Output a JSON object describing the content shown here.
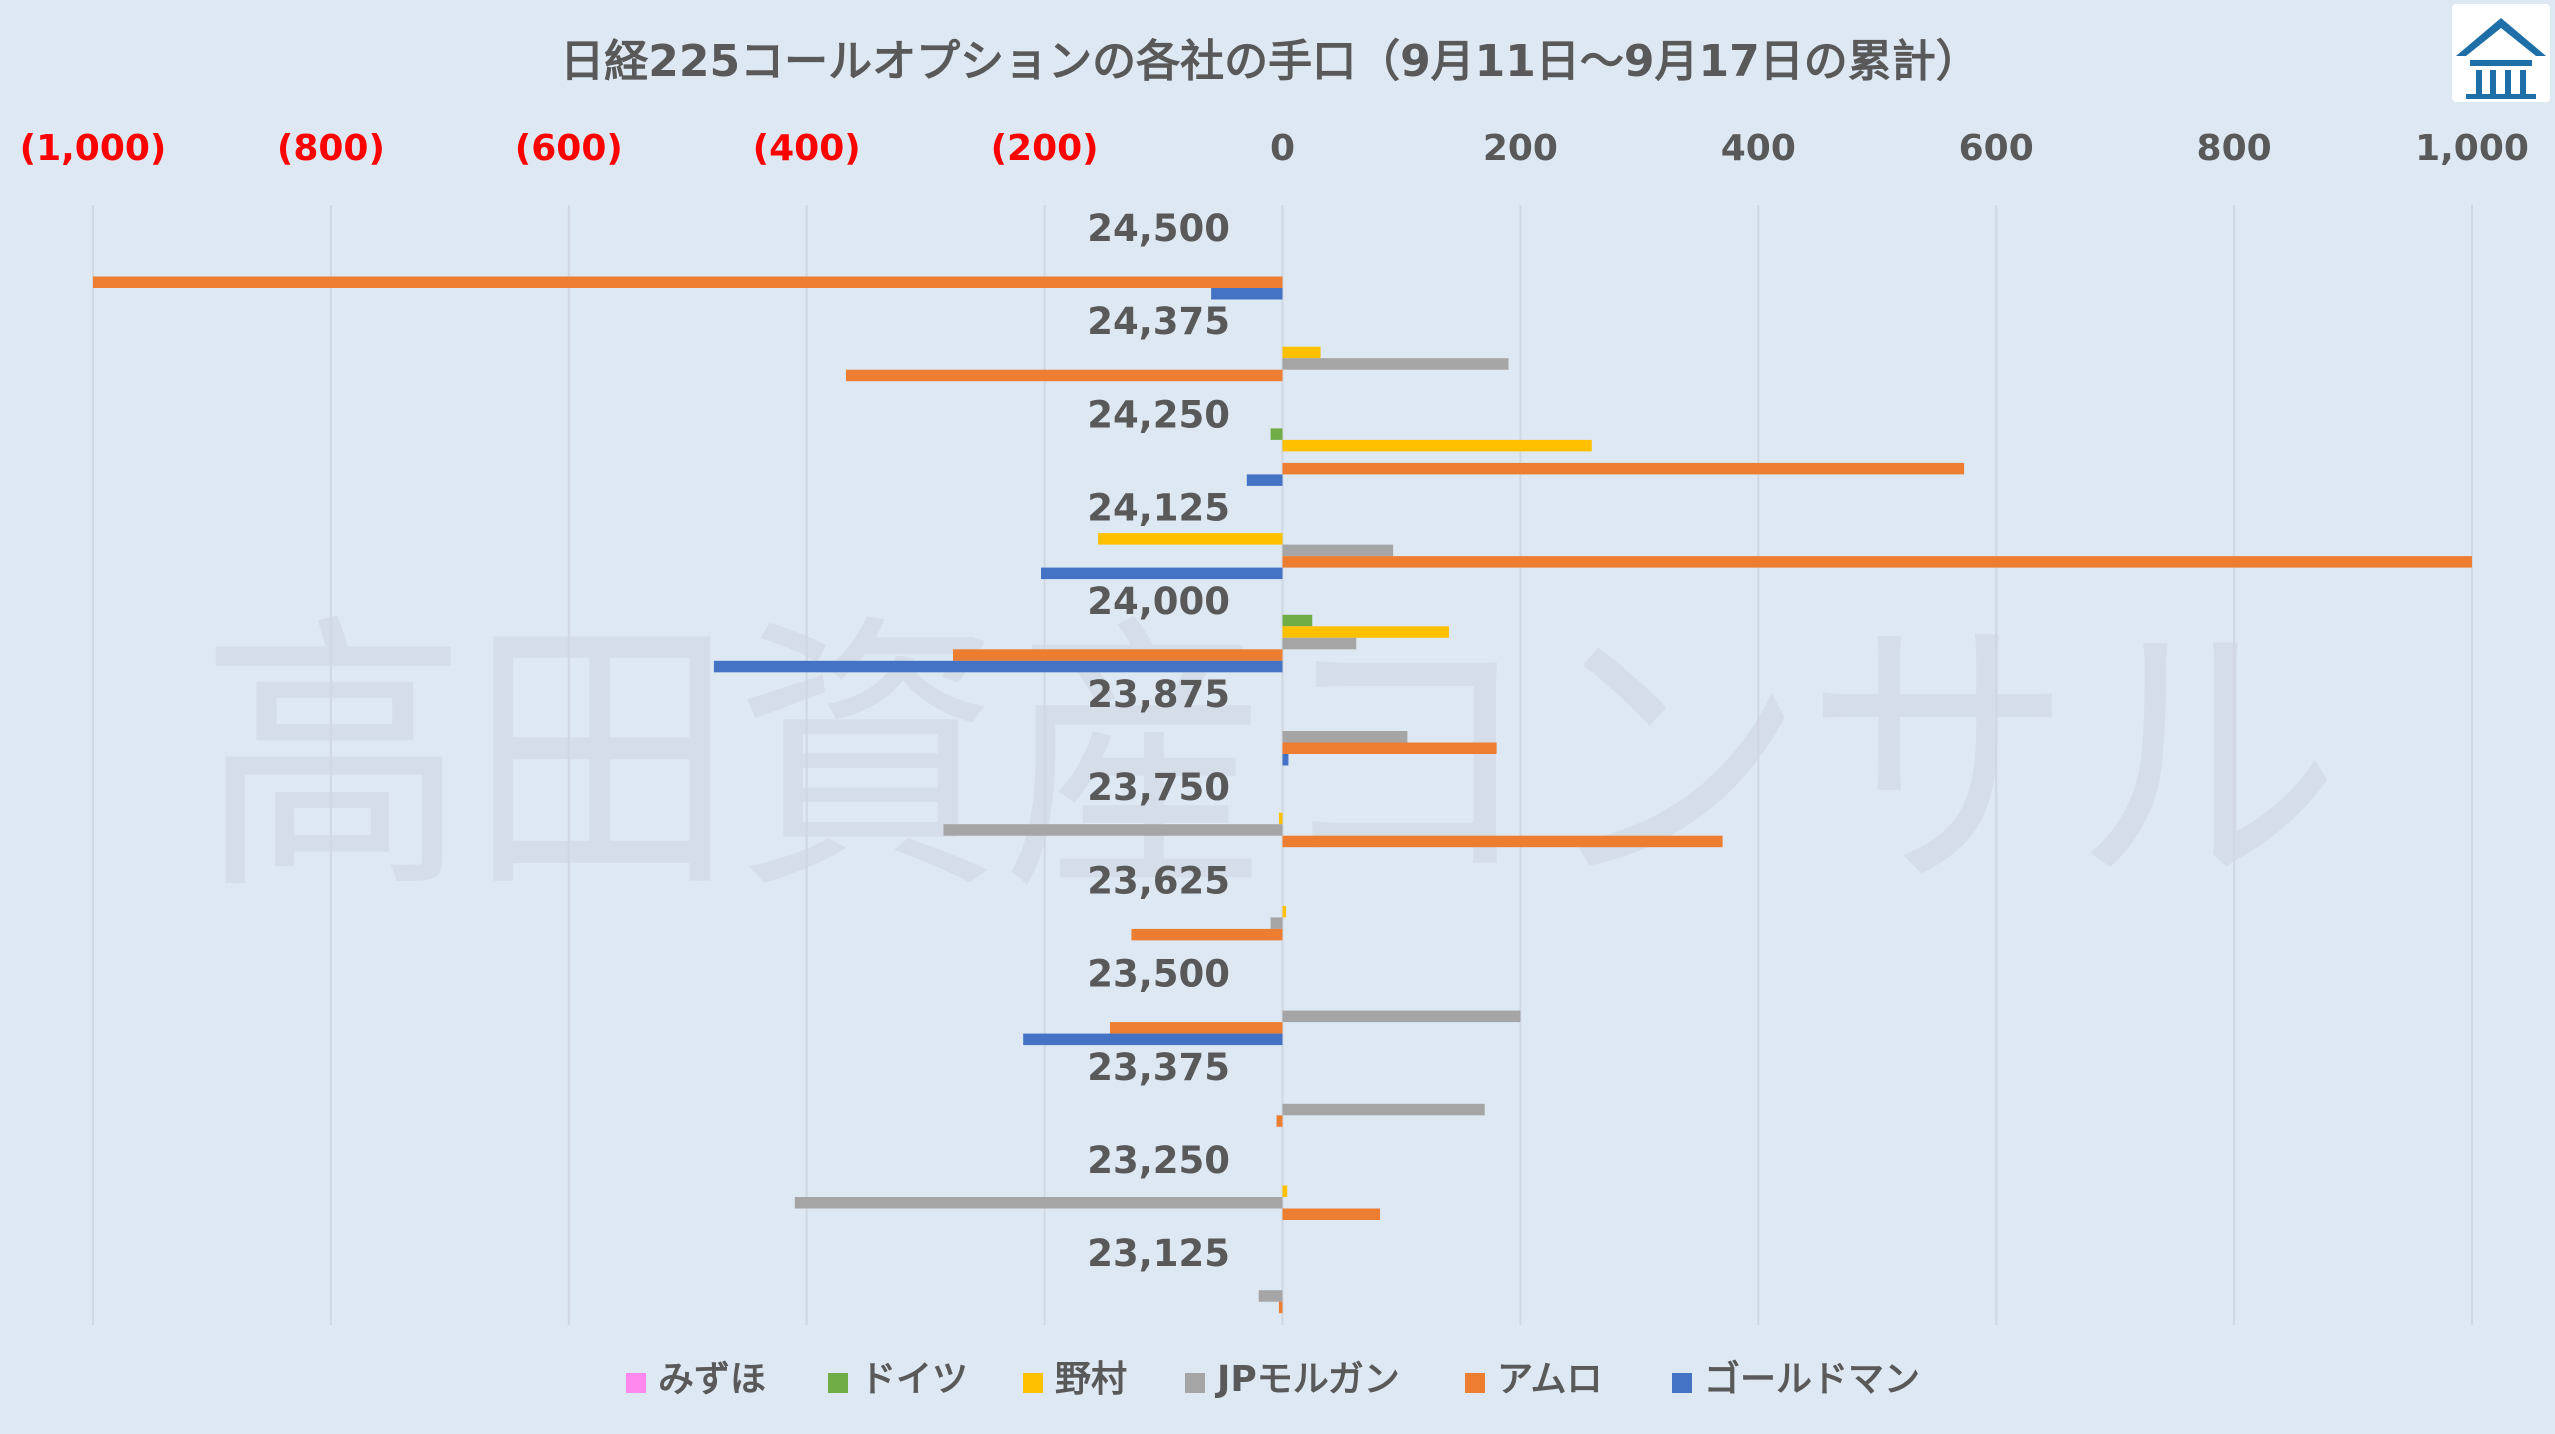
{
  "chart_data": {
    "type": "bar",
    "orientation": "horizontal",
    "title": "日経225コールオプションの各社の手口（9月11日～9月17日の累計）",
    "watermark": "高田資産コンサル",
    "logo": "company-logo",
    "xlim": [
      -1000,
      1000
    ],
    "x_ticks": [
      -1000,
      -800,
      -600,
      -400,
      -200,
      0,
      200,
      400,
      600,
      800,
      1000
    ],
    "x_tick_labels": [
      "(1,000)",
      "(800)",
      "(600)",
      "(400)",
      "(200)",
      "0",
      "200",
      "400",
      "600",
      "800",
      "1,000"
    ],
    "negative_tick_color": "#ff0000",
    "positive_tick_color": "#595959",
    "grid": true,
    "legend_position": "bottom",
    "categories": [
      "24,500",
      "24,375",
      "24,250",
      "24,125",
      "24,000",
      "23,875",
      "23,750",
      "23,625",
      "23,500",
      "23,375",
      "23,250",
      "23,125"
    ],
    "series": [
      {
        "name": "みずほ",
        "color": "#ff88ee",
        "values": [
          0,
          0,
          0,
          0,
          0,
          0,
          0,
          0,
          0,
          0,
          0,
          0
        ]
      },
      {
        "name": "ドイツ",
        "color": "#70ad47",
        "values": [
          0,
          0,
          -10,
          0,
          25,
          0,
          0,
          0,
          0,
          0,
          0,
          0
        ]
      },
      {
        "name": "野村",
        "color": "#ffc000",
        "values": [
          0,
          32,
          260,
          -155,
          140,
          0,
          -3,
          3,
          0,
          0,
          4,
          0
        ]
      },
      {
        "name": "JPモルガン",
        "color": "#a5a5a5",
        "values": [
          0,
          190,
          0,
          93,
          62,
          105,
          -285,
          -10,
          200,
          170,
          -410,
          -20
        ]
      },
      {
        "name": "アムロ",
        "color": "#ed7d31",
        "values": [
          -1000,
          -367,
          573,
          1000,
          -277,
          180,
          370,
          -127,
          -145,
          -5,
          82,
          -3
        ]
      },
      {
        "name": "ゴールドマン",
        "color": "#4472c4",
        "values": [
          -60,
          0,
          -30,
          -203,
          -478,
          5,
          0,
          0,
          -218,
          0,
          0,
          0
        ]
      }
    ]
  }
}
